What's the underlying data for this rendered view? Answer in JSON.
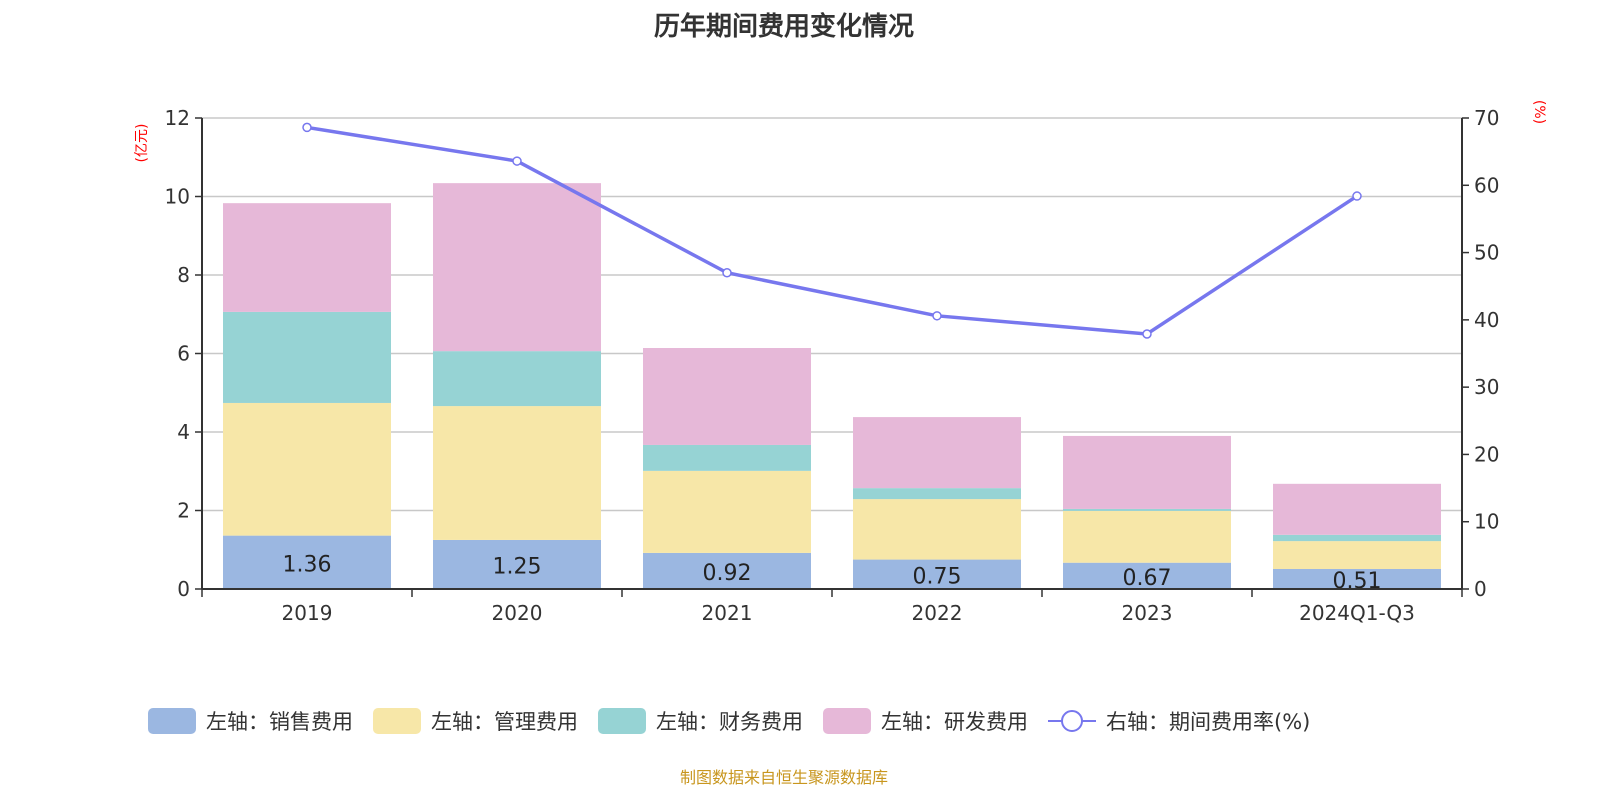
{
  "chart_data": {
    "type": "bar",
    "title": "历年期间费用变化情况",
    "source": "制图数据来自恒生聚源数据库",
    "categories": [
      "2019",
      "2020",
      "2021",
      "2022",
      "2023",
      "2024Q1-Q3"
    ],
    "left_axis": {
      "unit": "(亿元)",
      "range": [
        0,
        12
      ],
      "ticks": [
        0,
        2,
        4,
        6,
        8,
        10,
        12
      ]
    },
    "right_axis": {
      "unit": "(%)",
      "range": [
        0,
        70
      ],
      "ticks": [
        0,
        10,
        20,
        30,
        40,
        50,
        60,
        70
      ]
    },
    "grid": true,
    "legend_placement": "bottom",
    "stacked": true,
    "series": [
      {
        "name": "左轴：销售费用",
        "color": "#9bb7e1",
        "values": [
          1.36,
          1.25,
          0.92,
          0.75,
          0.67,
          0.51
        ],
        "labels": [
          "1.36",
          "1.25",
          "0.92",
          "0.75",
          "0.67",
          "0.51"
        ]
      },
      {
        "name": "左轴：管理费用",
        "color": "#f7e7a8",
        "values": [
          3.38,
          3.41,
          2.09,
          1.54,
          1.32,
          0.71
        ]
      },
      {
        "name": "左轴：财务费用",
        "color": "#96d3d4",
        "values": [
          2.32,
          1.4,
          0.66,
          0.28,
          0.05,
          0.16
        ]
      },
      {
        "name": "左轴：研发费用",
        "color": "#e6b8d8",
        "values": [
          2.77,
          4.28,
          2.47,
          1.81,
          1.86,
          1.3
        ]
      }
    ],
    "line": {
      "name": "右轴：期间费用率(%)",
      "color": "#7777ee",
      "values": [
        68.6,
        63.6,
        47.0,
        40.6,
        37.9,
        58.4
      ]
    }
  }
}
